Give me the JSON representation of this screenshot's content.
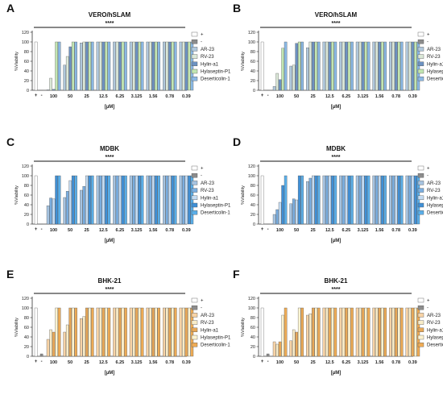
{
  "legend_colors": [
    "#ffffff",
    "#8c8c8c",
    "#b0c8dc",
    "#dbe8d8",
    "#6d92c2",
    "#c2e6b2",
    "#8ab8e4"
  ],
  "chart_data": [
    {
      "type": "bar",
      "panel_label": "A",
      "title": "VERO/hSLAM",
      "ylabel": "%Viability",
      "xlabel": "[µM]",
      "yticks": [
        "0",
        "20",
        "40",
        "60",
        "80",
        "100",
        "120"
      ],
      "ylim": [
        0,
        120
      ],
      "controls": [
        "+",
        "-"
      ],
      "control_values": [
        100,
        0
      ],
      "categories": [
        "100",
        "50",
        "25",
        "12.5",
        "6.25",
        "3.125",
        "1.56",
        "0.78",
        "0.39"
      ],
      "significance": "****",
      "series": [
        {
          "name": "AR-23",
          "values": [
            1,
            52,
            98,
            100,
            100,
            100,
            100,
            100,
            100
          ]
        },
        {
          "name": "RV-23",
          "values": [
            25,
            70,
            100,
            100,
            100,
            100,
            100,
            100,
            100
          ]
        },
        {
          "name": "Hylin-a1",
          "values": [
            2,
            90,
            100,
            100,
            100,
            100,
            100,
            100,
            100
          ]
        },
        {
          "name": "Hylaseptin-P1",
          "values": [
            100,
            100,
            100,
            100,
            100,
            100,
            100,
            100,
            100
          ]
        },
        {
          "name": "Deserticolin-1",
          "values": [
            100,
            100,
            100,
            100,
            100,
            100,
            100,
            100,
            100
          ]
        }
      ]
    },
    {
      "type": "bar",
      "panel_label": "B",
      "title": "VERO/hSLAM",
      "ylabel": "%Viability",
      "xlabel": "[µM]",
      "yticks": [
        "0",
        "20",
        "40",
        "60",
        "80",
        "100",
        "120"
      ],
      "ylim": [
        0,
        120
      ],
      "controls": [
        "+",
        "-"
      ],
      "control_values": [
        100,
        0
      ],
      "categories": [
        "100",
        "50",
        "25",
        "12.5",
        "6.25",
        "3.125",
        "1.56",
        "0.78",
        "0.39"
      ],
      "significance": "****",
      "series": [
        {
          "name": "AR-23",
          "values": [
            8,
            50,
            88,
            100,
            100,
            100,
            100,
            100,
            100
          ]
        },
        {
          "name": "RV-23",
          "values": [
            35,
            52,
            100,
            100,
            100,
            100,
            100,
            100,
            100
          ]
        },
        {
          "name": "Hylin-a1",
          "values": [
            22,
            97,
            100,
            100,
            100,
            100,
            100,
            100,
            100
          ]
        },
        {
          "name": "Hylaseptin-P1",
          "values": [
            87,
            100,
            100,
            100,
            100,
            100,
            100,
            100,
            100
          ]
        },
        {
          "name": "Deserticolin-1",
          "values": [
            100,
            100,
            100,
            100,
            100,
            100,
            100,
            100,
            100
          ]
        }
      ]
    },
    {
      "type": "bar",
      "panel_label": "C",
      "title": "MDBK",
      "ylabel": "%Viability",
      "xlabel": "[µM]",
      "yticks": [
        "0",
        "20",
        "40",
        "60",
        "80",
        "100",
        "120"
      ],
      "ylim": [
        0,
        120
      ],
      "controls": [
        "+",
        "-"
      ],
      "control_values": [
        100,
        0
      ],
      "categories": [
        "100",
        "50",
        "25",
        "12.5",
        "6.25",
        "3.125",
        "1.56",
        "0.78",
        "0.39"
      ],
      "significance": "****",
      "series": [
        {
          "name": "AR-23",
          "values": [
            38,
            55,
            70,
            100,
            100,
            100,
            100,
            100,
            100
          ]
        },
        {
          "name": "RV-23",
          "values": [
            54,
            68,
            78,
            100,
            100,
            100,
            100,
            100,
            100
          ]
        },
        {
          "name": "Hylin-a1",
          "values": [
            52,
            90,
            100,
            100,
            100,
            100,
            100,
            100,
            100
          ]
        },
        {
          "name": "Hylaseptin-P1",
          "values": [
            100,
            100,
            100,
            100,
            100,
            100,
            100,
            100,
            100
          ]
        },
        {
          "name": "Deserticolin-1",
          "values": [
            100,
            100,
            100,
            100,
            100,
            100,
            100,
            100,
            100
          ]
        }
      ]
    },
    {
      "type": "bar",
      "panel_label": "D",
      "title": "MDBK",
      "ylabel": "%Viability",
      "xlabel": "[µM]",
      "yticks": [
        "0",
        "20",
        "40",
        "60",
        "80",
        "100",
        "120"
      ],
      "ylim": [
        0,
        120
      ],
      "controls": [
        "+",
        "-"
      ],
      "control_values": [
        100,
        0
      ],
      "categories": [
        "100",
        "50",
        "25",
        "12.5",
        "6.25",
        "3.125",
        "1.56",
        "0.78",
        "0.39"
      ],
      "significance": "****",
      "series": [
        {
          "name": "AR-23",
          "values": [
            20,
            42,
            88,
            100,
            100,
            100,
            100,
            100,
            100
          ]
        },
        {
          "name": "RV-23",
          "values": [
            30,
            52,
            95,
            100,
            100,
            100,
            100,
            100,
            100
          ]
        },
        {
          "name": "Hylin-a1",
          "values": [
            45,
            50,
            100,
            100,
            100,
            100,
            100,
            100,
            100
          ]
        },
        {
          "name": "Hylaseptin-P1",
          "values": [
            80,
            100,
            100,
            100,
            100,
            100,
            100,
            100,
            100
          ]
        },
        {
          "name": "Deserticolin-1",
          "values": [
            100,
            100,
            100,
            100,
            100,
            100,
            100,
            100,
            100
          ]
        }
      ]
    },
    {
      "type": "bar",
      "panel_label": "E",
      "title": "BHK-21",
      "ylabel": "%Viability",
      "xlabel": "[µM]",
      "yticks": [
        "0",
        "20",
        "40",
        "60",
        "80",
        "100",
        "120"
      ],
      "ylim": [
        0,
        120
      ],
      "controls": [
        "+",
        "-"
      ],
      "control_values": [
        100,
        5
      ],
      "categories": [
        "100",
        "50",
        "25",
        "12.5",
        "6.25",
        "3.125",
        "1.56",
        "0.78",
        "0.39"
      ],
      "significance": "****",
      "series": [
        {
          "name": "AR-23",
          "values": [
            35,
            50,
            78,
            100,
            100,
            100,
            100,
            100,
            100
          ]
        },
        {
          "name": "RV-23",
          "values": [
            55,
            65,
            82,
            100,
            100,
            100,
            100,
            100,
            100
          ]
        },
        {
          "name": "Hylin-a1",
          "values": [
            50,
            100,
            100,
            100,
            100,
            100,
            100,
            100,
            100
          ]
        },
        {
          "name": "Hylaseptin-P1",
          "values": [
            100,
            100,
            100,
            100,
            100,
            100,
            100,
            100,
            100
          ]
        },
        {
          "name": "Deserticolin-1",
          "values": [
            100,
            100,
            100,
            100,
            100,
            100,
            100,
            100,
            100
          ]
        }
      ]
    },
    {
      "type": "bar",
      "panel_label": "F",
      "title": "BHK-21",
      "ylabel": "%Viability",
      "xlabel": "[µM]",
      "yticks": [
        "0",
        "20",
        "40",
        "60",
        "80",
        "100",
        "120"
      ],
      "ylim": [
        0,
        120
      ],
      "controls": [
        "+",
        "-"
      ],
      "control_values": [
        100,
        5
      ],
      "categories": [
        "100",
        "50",
        "25",
        "12.5",
        "6.25",
        "3.125",
        "1.56",
        "0.78",
        "0.39"
      ],
      "significance": "****",
      "series": [
        {
          "name": "AR-23",
          "values": [
            30,
            32,
            85,
            100,
            100,
            100,
            100,
            100,
            100
          ]
        },
        {
          "name": "RV-23",
          "values": [
            25,
            55,
            88,
            100,
            100,
            100,
            100,
            100,
            100
          ]
        },
        {
          "name": "Hylin-a1",
          "values": [
            30,
            50,
            100,
            100,
            100,
            100,
            100,
            100,
            100
          ]
        },
        {
          "name": "Hylaseptin-P1",
          "values": [
            85,
            100,
            100,
            100,
            100,
            100,
            100,
            100,
            100
          ]
        },
        {
          "name": "Deserticolin-1",
          "values": [
            100,
            100,
            100,
            100,
            100,
            100,
            100,
            100,
            100
          ]
        }
      ]
    }
  ],
  "palettes": {
    "blue": [
      "#ffffff",
      "#8c8c8c",
      "#b0c8dc",
      "#dbe8d8",
      "#6d92c2",
      "#c2e6b2",
      "#8ab8e4"
    ],
    "sky": [
      "#ffffff",
      "#8c8c8c",
      "#a6c3e0",
      "#7aaee0",
      "#c3dbf2",
      "#3f8fd6",
      "#5aaee8"
    ],
    "orange": [
      "#ffffff",
      "#8c8c8c",
      "#f7d3a6",
      "#f8ecc8",
      "#e8a858",
      "#fdf3d0",
      "#eeab55"
    ]
  }
}
